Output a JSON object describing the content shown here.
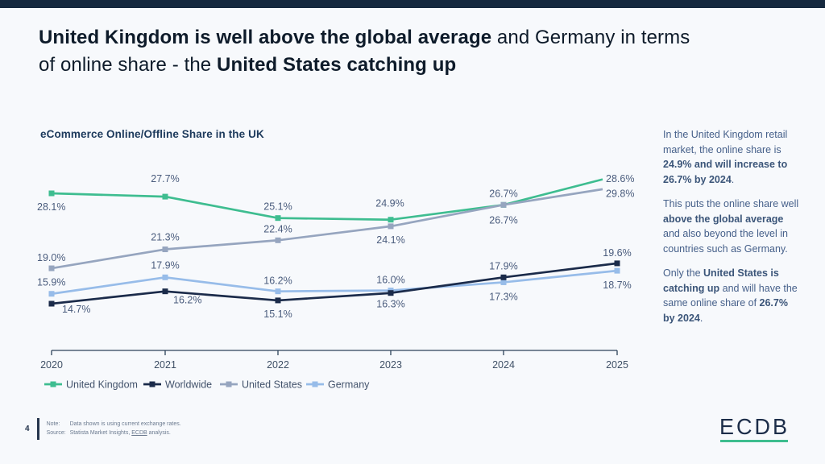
{
  "page": {
    "top_bar_color": "#15293f",
    "background_color": "#f7f9fc"
  },
  "title": {
    "runs": [
      {
        "text": "United Kingdom is well above the global average",
        "bold": true
      },
      {
        "text": " and Germany in terms",
        "bold": false
      },
      {
        "br": true
      },
      {
        "text": "of online share - the ",
        "bold": false
      },
      {
        "text": "United States catching up",
        "bold": true
      }
    ]
  },
  "chart": {
    "title": "eCommerce Online/Offline Share in the UK"
  },
  "chart_data": {
    "type": "line",
    "x": [
      2020,
      2021,
      2022,
      2023,
      2024,
      2025
    ],
    "unit": "%",
    "series": [
      {
        "name": "United Kingdom",
        "color": "#3ebd90",
        "values": [
          28.1,
          27.7,
          25.1,
          24.9,
          26.7,
          29.8
        ]
      },
      {
        "name": "Worldwide",
        "color": "#1b2b4a",
        "values": [
          14.7,
          16.2,
          15.1,
          16.0,
          17.9,
          19.6
        ]
      },
      {
        "name": "United States",
        "color": "#96a5bf",
        "values": [
          19.0,
          21.3,
          22.4,
          24.1,
          26.7,
          28.6
        ]
      },
      {
        "name": "Germany",
        "color": "#97bce9",
        "values": [
          15.9,
          17.9,
          16.2,
          16.3,
          17.3,
          18.7
        ]
      }
    ],
    "data_labels": true,
    "grid": false,
    "legend_position": "bottom",
    "ylim": [
      13,
      31
    ],
    "axis_color": "#2c4159",
    "label_color": "#4a5c7d",
    "tick_label_color": "#3f5066",
    "legend_text_color": "#42526b"
  },
  "sidebar": {
    "paragraphs": [
      {
        "runs": [
          {
            "text": "In the United Kingdom retail market, the online share is ",
            "bold": false
          },
          {
            "text": "24.9% and will increase to 26.7% by 2024",
            "bold": true
          },
          {
            "text": ".",
            "bold": false
          }
        ]
      },
      {
        "runs": [
          {
            "text": "This puts the online share well ",
            "bold": false
          },
          {
            "text": "above the global average",
            "bold": true
          },
          {
            "text": " and also beyond the level in countries such as Germany.",
            "bold": false
          }
        ]
      },
      {
        "runs": [
          {
            "text": "Only the ",
            "bold": false
          },
          {
            "text": "United States is catching up",
            "bold": true
          },
          {
            "text": " and will have the same online share of ",
            "bold": false
          },
          {
            "text": "26.7% by 2024",
            "bold": true
          },
          {
            "text": ".",
            "bold": false
          }
        ]
      }
    ]
  },
  "footer": {
    "page_number": "4",
    "note_label": "Note:",
    "note_text": "Data shown is using current exchange rates.",
    "source_label": "Source:",
    "source_prefix": "Statista Market Insights, ",
    "source_link": "ECDB",
    "source_suffix": " analysis.",
    "logo_text": "ECDB"
  }
}
